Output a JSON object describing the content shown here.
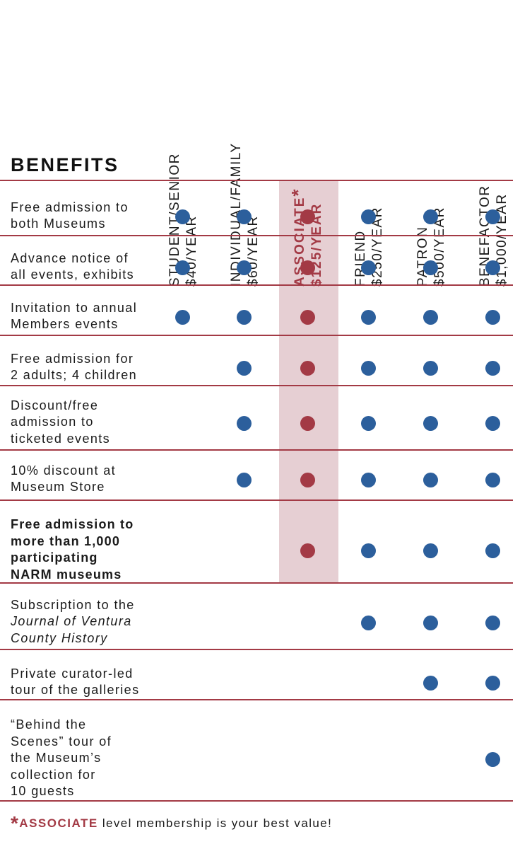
{
  "title": "BENEFITS",
  "columns": [
    {
      "line1": "STUDENT/SENIOR",
      "line2": "$40/YEAR",
      "highlight": false
    },
    {
      "line1": "INDIVIDUAL/FAMILY",
      "line2": "$60/YEAR",
      "highlight": false
    },
    {
      "line1": "ASSOCIATE",
      "line2": "$125/YEAR",
      "highlight": true,
      "star": "*"
    },
    {
      "line1": "FRIEND",
      "line2": "$250/YEAR",
      "highlight": false
    },
    {
      "line1": "PATRON",
      "line2": "$500/YEAR",
      "highlight": false
    },
    {
      "line1": "BENEFACTOR",
      "line2": "$1,000/YEAR",
      "highlight": false
    }
  ],
  "rows": [
    {
      "lines": [
        "Free admission to",
        "both Museums"
      ],
      "bold": false,
      "included": [
        true,
        true,
        true,
        true,
        true,
        true
      ]
    },
    {
      "lines": [
        "Advance notice of",
        "all events, exhibits"
      ],
      "bold": false,
      "included": [
        true,
        true,
        true,
        true,
        true,
        true
      ]
    },
    {
      "lines": [
        "Invitation to annual",
        "Members events"
      ],
      "bold": false,
      "included": [
        true,
        true,
        true,
        true,
        true,
        true
      ]
    },
    {
      "lines": [
        "Free admission for",
        "2 adults; 4 children"
      ],
      "bold": false,
      "included": [
        false,
        true,
        true,
        true,
        true,
        true
      ]
    },
    {
      "lines": [
        "Discount/free",
        "admission to",
        "ticketed events"
      ],
      "bold": false,
      "included": [
        false,
        true,
        true,
        true,
        true,
        true
      ]
    },
    {
      "lines": [
        "10% discount at",
        "Museum Store"
      ],
      "bold": false,
      "included": [
        false,
        true,
        true,
        true,
        true,
        true
      ]
    },
    {
      "lines": [
        "Free admission to",
        "more than 1,000",
        "participating",
        "NARM museums"
      ],
      "bold": true,
      "included": [
        false,
        false,
        true,
        true,
        true,
        true
      ]
    },
    {
      "lines": [
        "Subscription to the",
        "Journal of Ventura",
        "County History"
      ],
      "italic_lines": [
        1,
        2
      ],
      "bold": false,
      "included": [
        false,
        false,
        false,
        true,
        true,
        true
      ]
    },
    {
      "lines": [
        "Private curator-led",
        "tour of the galleries"
      ],
      "bold": false,
      "included": [
        false,
        false,
        false,
        false,
        true,
        true
      ]
    },
    {
      "lines": [
        "“Behind the",
        "Scenes” tour of",
        "the Museum’s",
        "collection for",
        "10 guests"
      ],
      "bold": false,
      "included": [
        false,
        false,
        false,
        false,
        false,
        true
      ]
    }
  ],
  "footnote": {
    "star": "*",
    "highlight": "ASSOCIATE",
    "text": " level membership is your best value!"
  },
  "colors": {
    "dot": "#2c5f9c",
    "accent": "#a33a45",
    "band": "#e6cfd3"
  }
}
